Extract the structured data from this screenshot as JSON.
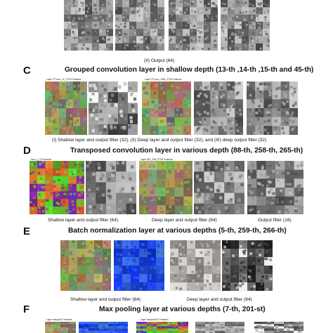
{
  "panel_b": {
    "caption": "(II) Output (64)"
  },
  "panel_c": {
    "letter": "C",
    "title": "Grouped convolution layer in shallow depth (13-th ,14-th ,15-th and 45-th)",
    "tiny_labels": [
      "Layer TP conv_12_1TSS Features",
      "Layer TP conv_1306_1TSS Features"
    ],
    "caption": "(I) Shallow layer and output filter (32), (II) Deep layer and output filter (32), and (III) deep output filter (32)"
  },
  "panel_d": {
    "letter": "D",
    "title": "Transposed convolution layer in various depth (88-th, 258-th, 265-th)",
    "tiny_labels": [
      "conv_1_13 Features",
      "Layer 3DL_S38_ETSS Features"
    ],
    "captions": [
      "Shallow layer and output filter (64)",
      "Deep layer and output filter (64)",
      "Output filter (16)"
    ]
  },
  "panel_e": {
    "letter": "E",
    "title": "Batch normalization layer at various depths (5-th, 259-th, 266-th)",
    "captions": [
      "Shallow layer and output filter (64)",
      "Deep layer and output filter (64)"
    ]
  },
  "panel_f": {
    "letter": "F",
    "title": "Max pooling layer at various depths (7-th, 201-st)",
    "tiny_labels": [
      "Layer maxpool1 Features",
      "Layer maxpool201 Features"
    ]
  },
  "colors": {
    "background": "#ffffff",
    "text": "#111111"
  }
}
